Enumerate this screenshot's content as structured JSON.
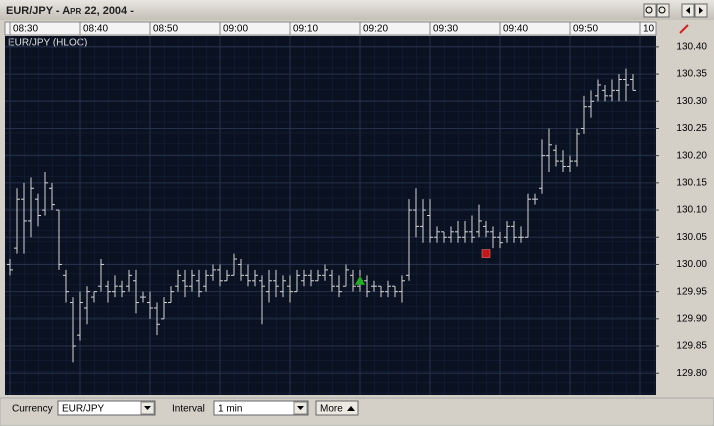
{
  "window_title": "EUR/JPY - Apr 22, 2004 -",
  "chart_data": {
    "type": "ohlc",
    "title": "EUR/JPY (HLOC)",
    "color": "#d4d4d4",
    "categories": [
      "08:30",
      null,
      null,
      null,
      null,
      null,
      null,
      null,
      null,
      null,
      "08:40",
      null,
      null,
      null,
      null,
      null,
      null,
      null,
      null,
      null,
      "08:50",
      null,
      null,
      null,
      null,
      null,
      null,
      null,
      null,
      null,
      "09:00",
      null,
      null,
      null,
      null,
      null,
      null,
      null,
      null,
      null,
      "09:10",
      null,
      null,
      null,
      null,
      null,
      null,
      null,
      null,
      null,
      "09:20",
      null,
      null,
      null,
      null,
      null,
      null,
      null,
      null,
      null,
      "09:30",
      null,
      null,
      null,
      null,
      null,
      null,
      null,
      null,
      null,
      "09:40",
      null,
      null,
      null,
      null,
      null,
      null,
      null,
      null,
      null,
      "09:50",
      null,
      null,
      null,
      null,
      null,
      null,
      null,
      null,
      null,
      "10"
    ],
    "open": [
      130.0,
      130.03,
      130.12,
      130.08,
      130.12,
      130.1,
      130.14,
      130.1,
      129.98,
      129.93,
      129.87,
      129.92,
      129.94,
      129.96,
      129.96,
      129.95,
      129.96,
      129.96,
      129.97,
      129.94,
      129.93,
      129.92,
      129.9,
      129.93,
      129.96,
      129.97,
      129.96,
      129.97,
      129.96,
      129.98,
      129.99,
      129.97,
      129.98,
      130.0,
      129.98,
      129.97,
      129.97,
      129.95,
      129.97,
      129.95,
      129.96,
      129.95,
      129.97,
      129.98,
      129.97,
      129.98,
      129.98,
      129.96,
      129.96,
      129.98,
      129.96,
      129.97,
      129.96,
      129.96,
      129.95,
      129.96,
      129.95,
      129.98,
      130.1,
      130.07,
      130.09,
      130.05,
      130.06,
      130.05,
      130.06,
      130.05,
      130.06,
      130.06,
      130.07,
      130.06,
      130.05,
      130.05,
      130.07,
      130.05,
      130.05,
      130.12,
      130.14,
      130.2,
      130.21,
      130.19,
      130.18,
      130.19,
      130.25,
      130.29,
      130.31,
      130.32,
      130.31,
      130.32,
      130.34,
      130.34,
      null
    ],
    "high": [
      130.01,
      130.14,
      130.15,
      130.16,
      130.13,
      130.17,
      130.15,
      130.1,
      129.99,
      129.94,
      129.95,
      129.96,
      129.95,
      130.01,
      129.97,
      129.98,
      129.97,
      129.99,
      129.99,
      129.95,
      129.95,
      129.93,
      129.94,
      129.96,
      129.99,
      129.99,
      129.99,
      129.99,
      129.99,
      130.0,
      130.0,
      129.99,
      130.02,
      130.01,
      130.0,
      129.99,
      129.98,
      129.99,
      129.99,
      129.98,
      129.98,
      129.99,
      129.99,
      129.99,
      129.99,
      130.0,
      129.99,
      129.98,
      130.0,
      129.99,
      129.99,
      129.98,
      129.97,
      129.96,
      129.97,
      129.96,
      129.98,
      130.12,
      130.14,
      130.12,
      130.12,
      130.07,
      130.06,
      130.07,
      130.08,
      130.08,
      130.09,
      130.11,
      130.08,
      130.07,
      130.06,
      130.08,
      130.08,
      130.07,
      130.13,
      130.13,
      130.23,
      130.25,
      130.22,
      130.21,
      130.2,
      130.25,
      130.31,
      130.32,
      130.34,
      130.33,
      130.34,
      130.35,
      130.36,
      130.35,
      null
    ],
    "low": [
      129.98,
      130.02,
      130.02,
      130.05,
      130.07,
      130.09,
      130.1,
      129.99,
      129.93,
      129.82,
      129.86,
      129.89,
      129.93,
      129.95,
      129.93,
      129.94,
      129.94,
      129.95,
      129.91,
      129.93,
      129.9,
      129.87,
      129.9,
      129.93,
      129.95,
      129.94,
      129.95,
      129.94,
      129.95,
      129.97,
      129.96,
      129.97,
      129.98,
      129.97,
      129.96,
      129.96,
      129.89,
      129.93,
      129.94,
      129.94,
      129.93,
      129.95,
      129.96,
      129.96,
      129.97,
      129.97,
      129.95,
      129.94,
      129.96,
      129.95,
      129.95,
      129.94,
      129.95,
      129.94,
      129.94,
      129.94,
      129.93,
      129.97,
      130.05,
      130.04,
      130.04,
      130.04,
      130.04,
      130.04,
      130.04,
      130.04,
      130.04,
      130.05,
      130.05,
      130.03,
      130.03,
      130.04,
      130.04,
      130.04,
      130.05,
      130.11,
      130.13,
      130.17,
      130.18,
      130.17,
      130.17,
      130.18,
      130.24,
      130.27,
      130.3,
      130.3,
      130.3,
      130.3,
      130.3,
      130.32,
      null
    ],
    "close": [
      129.99,
      130.12,
      130.08,
      130.14,
      130.09,
      130.15,
      130.11,
      130.0,
      129.95,
      129.85,
      129.93,
      129.95,
      129.95,
      130.0,
      129.95,
      129.96,
      129.95,
      129.98,
      129.93,
      129.94,
      129.92,
      129.89,
      129.93,
      129.95,
      129.98,
      129.96,
      129.98,
      129.95,
      129.98,
      129.99,
      129.97,
      129.98,
      130.01,
      129.98,
      129.97,
      129.98,
      129.96,
      129.97,
      129.96,
      129.97,
      129.95,
      129.98,
      129.98,
      129.97,
      129.98,
      129.99,
      129.96,
      129.95,
      129.99,
      129.96,
      129.97,
      129.95,
      129.96,
      129.95,
      129.96,
      129.95,
      129.97,
      130.1,
      130.07,
      130.1,
      130.05,
      130.06,
      130.05,
      130.06,
      130.05,
      130.06,
      130.05,
      130.08,
      130.06,
      130.05,
      130.04,
      130.07,
      130.05,
      130.05,
      130.12,
      130.12,
      130.2,
      130.22,
      130.19,
      130.18,
      130.19,
      130.24,
      130.29,
      130.3,
      130.33,
      130.31,
      130.32,
      130.34,
      130.33,
      130.32,
      null
    ],
    "ylim": [
      129.76,
      130.42
    ],
    "yticks": [
      {
        "value": 129.8,
        "label": "129.80"
      },
      129.85,
      {
        "value": 129.9,
        "label": "129.90"
      },
      129.95,
      {
        "value": 130,
        "label": "130.00"
      },
      130.05,
      {
        "value": 130.1,
        "label": "130.10"
      },
      130.15,
      {
        "value": 130.2,
        "label": "130.20"
      },
      130.25,
      {
        "value": 130.3,
        "label": "130.30"
      },
      130.35,
      {
        "value": 130.4,
        "label": "130.40"
      }
    ],
    "grid": true,
    "markers": [
      {
        "index": 50,
        "value": 129.97,
        "shape": "triangle",
        "color": "#22b022"
      },
      {
        "index": 68,
        "value": 130.02,
        "shape": "square",
        "color": "#c01818"
      }
    ]
  },
  "controls": {
    "currency_label": "Currency",
    "currency_value": "EUR/JPY",
    "interval_label": "Interval",
    "interval_value": "1 min",
    "more_button": "More"
  }
}
